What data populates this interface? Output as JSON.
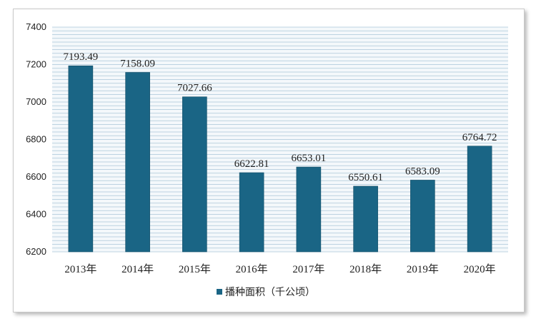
{
  "chart_data": {
    "type": "bar",
    "categories": [
      "2013年",
      "2014年",
      "2015年",
      "2016年",
      "2017年",
      "2018年",
      "2019年",
      "2020年"
    ],
    "values": [
      7193.49,
      7158.09,
      7027.66,
      6622.81,
      6653.01,
      6550.61,
      6583.09,
      6764.72
    ],
    "data_labels": [
      "7193.49",
      "7158.09",
      "7027.66",
      "6622.81",
      "6653.01",
      "6550.61",
      "6583.09",
      "6764.72"
    ],
    "series": [
      {
        "name": "播种面积（千公顷）"
      }
    ],
    "title": "",
    "xlabel": "",
    "ylabel": "",
    "ylim": [
      6200,
      7400
    ],
    "yticks": [
      6200,
      6400,
      6600,
      6800,
      7000,
      7200,
      7400
    ],
    "grid": true,
    "legend_position": "bottom",
    "colors": {
      "bar": "#1a6585",
      "grid": "#aac6d8",
      "plot_bg": "#f4f8fb"
    }
  }
}
